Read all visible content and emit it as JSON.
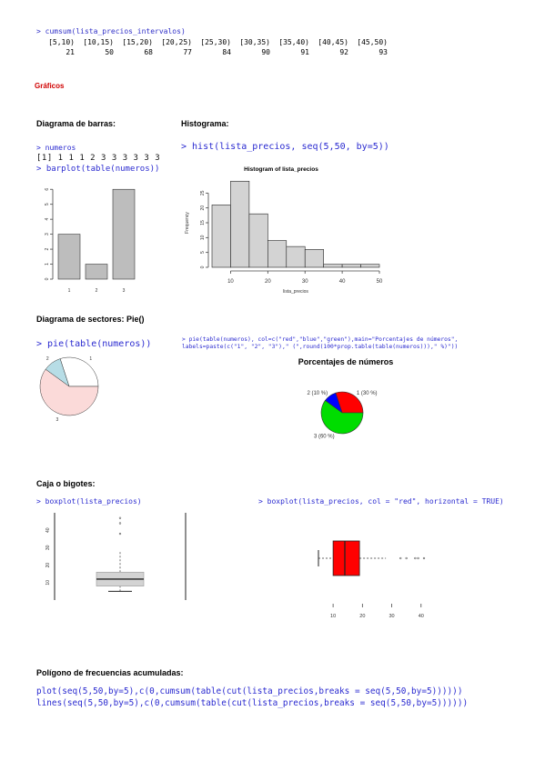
{
  "cumsum": {
    "command": "> cumsum(lista_precios_intervalos)",
    "intervals": [
      "[5,10)",
      "[10,15)",
      "[15,20)",
      "[20,25)",
      "[25,30)",
      "[30,35)",
      "[35,40)",
      "[40,45)",
      "[45,50)"
    ],
    "values": [
      "21",
      "50",
      "68",
      "77",
      "84",
      "90",
      "91",
      "92",
      "93"
    ]
  },
  "sections": {
    "graficos": "Gráficos",
    "barras": "Diagrama de barras:",
    "histograma": "Histograma:",
    "sectores": "Diagrama de sectores: Pie()",
    "caja": "Caja o bigotes:",
    "poligono": "Polígono de frecuencias acumuladas:"
  },
  "barplot": {
    "cmd_numeros": "> numeros",
    "numeros_output": "[1] 1 1 1 2 3 3 3 3 3 3",
    "cmd_barplot": "> barplot(table(numeros))",
    "y_ticks": [
      "0",
      "1",
      "2",
      "3",
      "4",
      "5",
      "6"
    ],
    "chart_data": {
      "type": "bar",
      "categories": [
        "1",
        "2",
        "3"
      ],
      "values": [
        3,
        1,
        6
      ],
      "ylim": [
        0,
        6.5
      ]
    }
  },
  "histogram": {
    "cmd": "> hist(lista_precios, seq(5,50, by=5))",
    "chart_data": {
      "type": "bar",
      "title": "Histogram of lista_precios",
      "xlabel": "lista_precios",
      "ylabel": "Frequency",
      "bins": [
        "5-10",
        "10-15",
        "15-20",
        "20-25",
        "25-30",
        "30-35",
        "35-40",
        "40-45",
        "45-50"
      ],
      "values": [
        21,
        29,
        18,
        9,
        7,
        6,
        1,
        1,
        1
      ],
      "x_ticks": [
        "10",
        "20",
        "30",
        "40",
        "50"
      ],
      "y_ticks": [
        "0",
        "5",
        "10",
        "15",
        "20",
        "25"
      ],
      "xlim": [
        5,
        50
      ],
      "ylim": [
        0,
        30
      ]
    }
  },
  "pie_simple": {
    "cmd": "> pie(table(numeros))",
    "labels": [
      "1",
      "2",
      "3"
    ],
    "chart_data": {
      "type": "pie",
      "labels": [
        "1",
        "2",
        "3"
      ],
      "values": [
        3,
        1,
        6
      ],
      "colors": [
        "#ffffff",
        "#b7dde6",
        "#fbdad9"
      ]
    }
  },
  "pie_colored": {
    "cmd_line1": "> pie(table(numeros), col=c(\"red\",\"blue\",\"green\"),main=\"Porcentajes de números\",",
    "cmd_line2": "labels=paste(c(\"1\", \"2\", \"3\"),\" (\",round(100*prop.table(table(numeros))),\" %)\"))",
    "chart_data": {
      "type": "pie",
      "title": "Porcentajes de números",
      "labels": [
        "1 (30 %)",
        "2 (10 %)",
        "3 (60 %)"
      ],
      "values": [
        30,
        10,
        60
      ],
      "colors": [
        "#ff0000",
        "#0000ff",
        "#00dd00"
      ]
    }
  },
  "boxplot_vertical": {
    "cmd": "> boxplot(lista_precios)",
    "y_ticks": [
      "10",
      "20",
      "30",
      "40"
    ],
    "chart_data": {
      "type": "boxplot",
      "orientation": "vertical",
      "min": 5,
      "q1": 8,
      "median": 12,
      "q3": 16,
      "max": 28,
      "outliers": [
        38,
        44,
        47
      ],
      "ylim": [
        0,
        50
      ],
      "color": "#d3d3d3"
    }
  },
  "boxplot_horizontal": {
    "cmd": "> boxplot(lista_precios, col = \"red\", horizontal = TRUE)",
    "x_ticks": [
      "10",
      "20",
      "30",
      "40"
    ],
    "chart_data": {
      "type": "boxplot",
      "orientation": "horizontal",
      "min": 5,
      "q1": 10,
      "median": 14,
      "q3": 19,
      "max": 28,
      "outliers": [
        33,
        35,
        38,
        39,
        41
      ],
      "xlim": [
        5,
        50
      ],
      "color": "#ff0000"
    }
  },
  "poligono": {
    "line1": "plot(seq(5,50,by=5),c(0,cumsum(table(cut(lista_precios,breaks = seq(5,50,by=5))))))",
    "line2": "lines(seq(5,50,by=5),c(0,cumsum(table(cut(lista_precios,breaks = seq(5,50,by=5))))))"
  }
}
